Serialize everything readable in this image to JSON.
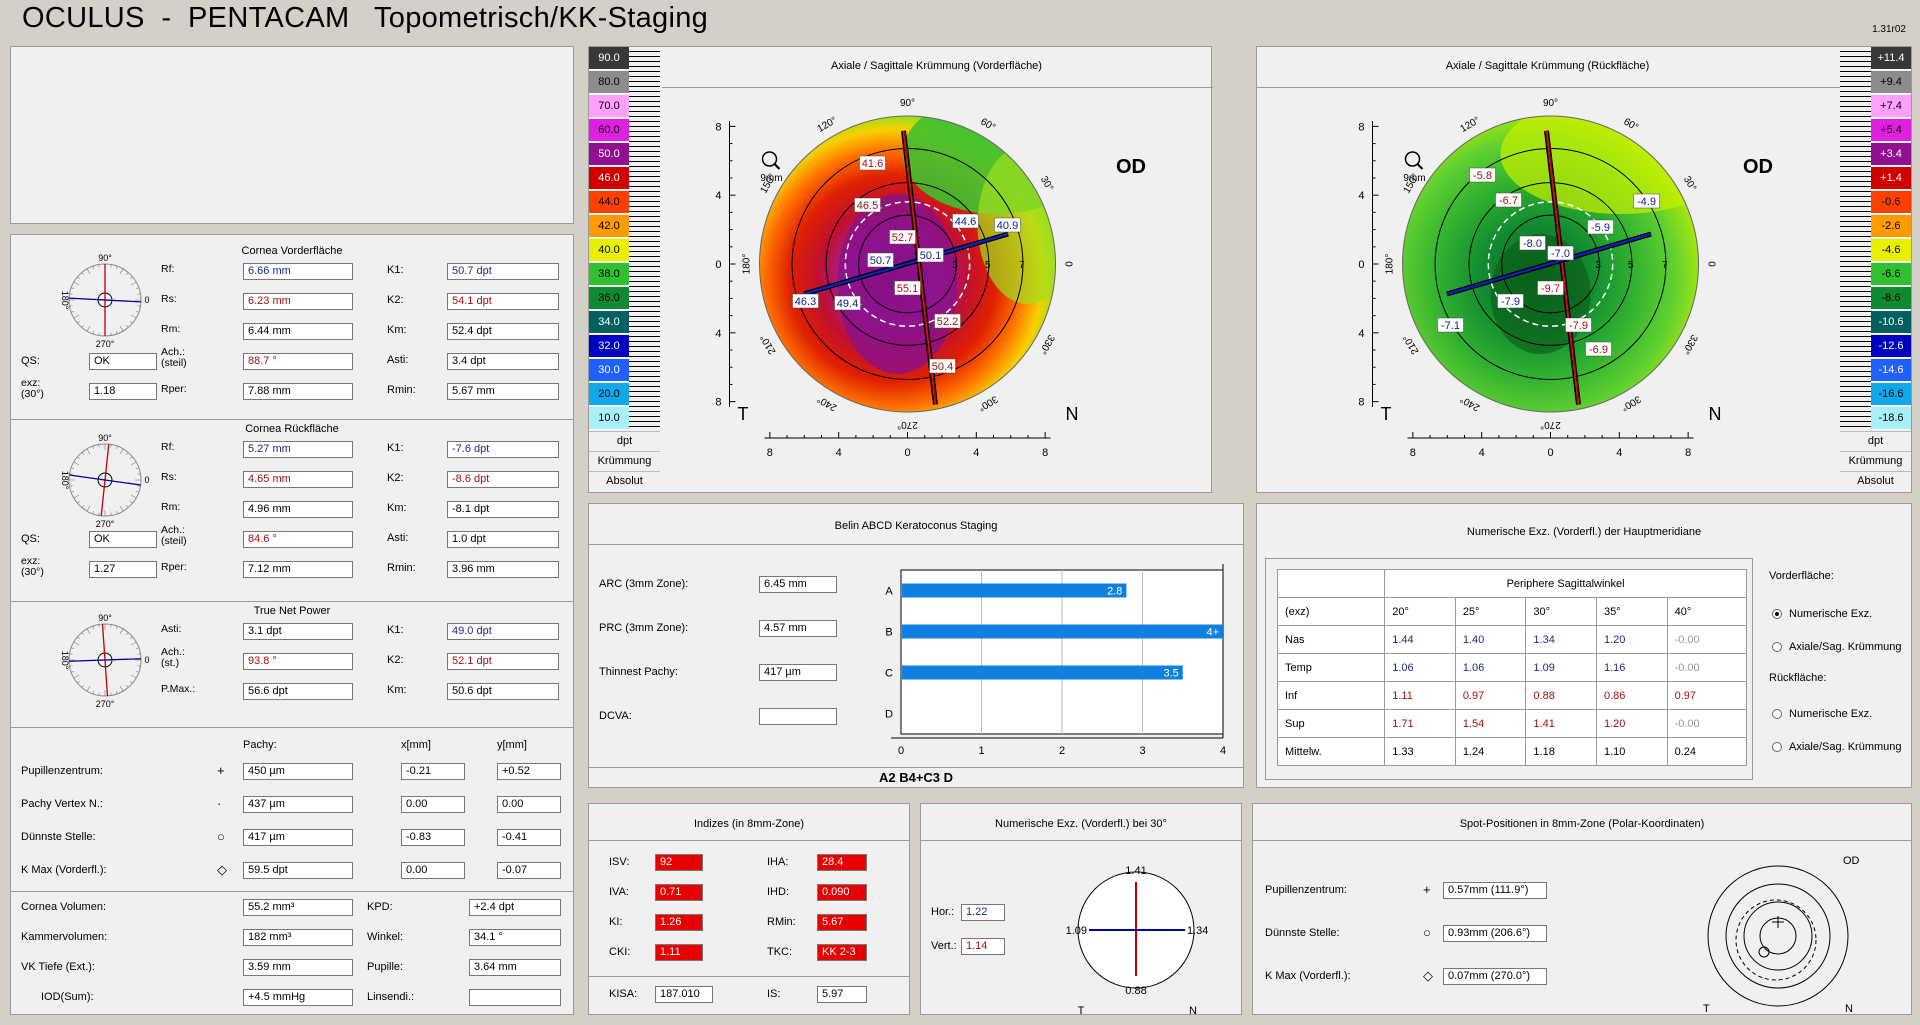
{
  "header": {
    "title": "OCULUS  -  PENTACAM   Topometrisch/KK-Staging",
    "version": "1.31r02"
  },
  "front": {
    "title": "Cornea Vorderfläche",
    "rows": [
      {
        "l1": "Rf:",
        "v1": "6.66 mm",
        "c1": "blue",
        "l2": "K1:",
        "v2": "50.7 dpt",
        "c2": "blue"
      },
      {
        "l1": "Rs:",
        "v1": "6.23 mm",
        "c1": "red",
        "l2": "K2:",
        "v2": "54.1 dpt",
        "c2": "red"
      },
      {
        "l1": "Rm:",
        "v1": "6.44 mm",
        "c1": "",
        "l2": "Km:",
        "v2": "52.4 dpt",
        "c2": ""
      },
      {
        "l1": "Ach.:\n(steil)",
        "v1": "88.7 °",
        "c1": "red",
        "l2": "Asti:",
        "v2": "3.4 dpt",
        "c2": ""
      },
      {
        "l1": "Rper:",
        "v1": "7.88 mm",
        "c1": "",
        "l2": "Rmin:",
        "v2": "5.67 mm",
        "c2": ""
      }
    ],
    "qs_label": "QS:",
    "qs": "OK",
    "exz_label": "exz:\n(30°)",
    "exz": "1.18"
  },
  "back": {
    "title": "Cornea Rückfläche",
    "rows": [
      {
        "l1": "Rf:",
        "v1": "5.27 mm",
        "c1": "blue",
        "l2": "K1:",
        "v2": "-7.6 dpt",
        "c2": "blue"
      },
      {
        "l1": "Rs:",
        "v1": "4.65 mm",
        "c1": "red",
        "l2": "K2:",
        "v2": "-8.6 dpt",
        "c2": "red"
      },
      {
        "l1": "Rm:",
        "v1": "4.96 mm",
        "c1": "",
        "l2": "Km:",
        "v2": "-8.1 dpt",
        "c2": ""
      },
      {
        "l1": "Ach.:\n(steil)",
        "v1": "84.6 °",
        "c1": "red",
        "l2": "Asti:",
        "v2": "1.0 dpt",
        "c2": ""
      },
      {
        "l1": "Rper:",
        "v1": "7.12 mm",
        "c1": "",
        "l2": "Rmin:",
        "v2": "3.96 mm",
        "c2": ""
      }
    ],
    "qs_label": "QS:",
    "qs": "OK",
    "exz_label": "exz:\n(30°)",
    "exz": "1.27"
  },
  "tnp": {
    "title": "True Net Power",
    "rows": [
      {
        "l1": "Asti:",
        "v1": "3.1 dpt",
        "c1": "",
        "l2": "K1:",
        "v2": "49.0 dpt",
        "c2": "blue"
      },
      {
        "l1": "Ach.:\n(st.)",
        "v1": "93.8 °",
        "c1": "red",
        "l2": "K2:",
        "v2": "52.1 dpt",
        "c2": "red"
      },
      {
        "l1": "P.Max.:",
        "v1": "56.6 dpt",
        "c1": "",
        "l2": "Km:",
        "v2": "50.6 dpt",
        "c2": ""
      }
    ]
  },
  "axisLabels": {
    "top": "90°",
    "bottom": "270°",
    "left": "180°",
    "right": "0"
  },
  "pachy": {
    "h_pachy": "Pachy:",
    "h_x": "x[mm]",
    "h_y": "y[mm]",
    "rows": [
      {
        "label": "Pupillenzentrum:",
        "sym": "+",
        "p": "450 µm",
        "x": "-0.21",
        "y": "+0.52"
      },
      {
        "label": "Pachy Vertex N.:",
        "sym": "·",
        "p": "437 µm",
        "x": "0.00",
        "y": "0.00"
      },
      {
        "label": "Dünnste Stelle:",
        "sym": "○",
        "p": "417 µm",
        "x": "-0.83",
        "y": "-0.41"
      },
      {
        "label": "K Max (Vorderfl.):",
        "sym": "◇",
        "p": "59.5 dpt",
        "x": "0.00",
        "y": "-0.07"
      }
    ]
  },
  "volume": {
    "rows": [
      {
        "l1": "Cornea Volumen:",
        "v1": "55.2 mm³",
        "l2": "KPD:",
        "v2": "+2.4 dpt"
      },
      {
        "l1": "Kammervolumen:",
        "v1": "182 mm³",
        "l2": "Winkel:",
        "v2": "34.1 °"
      },
      {
        "l1": "VK Tiefe (Ext.):",
        "v1": "3.59 mm",
        "l2": "Pupille:",
        "v2": "3.64 mm"
      },
      {
        "l1": "IOD(Sum):",
        "v1": "+4.5 mmHg",
        "l2": "Linsendi.:",
        "v2": ""
      }
    ]
  },
  "map1": {
    "title": "Axiale / Sagittale Krümmung (Vorderfläche)",
    "eye": "OD",
    "T": "T",
    "N": "N",
    "zoom": "9mm",
    "scale": [
      {
        "v": "90.0",
        "c": "#383838",
        "t": "#fff"
      },
      {
        "v": "80.0",
        "c": "#8c8c8c",
        "t": "#000"
      },
      {
        "v": "70.0",
        "c": "#ffa0ff",
        "t": "#000"
      },
      {
        "v": "60.0",
        "c": "#e020e0",
        "t": "#000"
      },
      {
        "v": "50.0",
        "c": "#901090",
        "t": "#fff"
      },
      {
        "v": "46.0",
        "c": "#d00000",
        "t": "#fff"
      },
      {
        "v": "44.0",
        "c": "#ff4000",
        "t": "#000"
      },
      {
        "v": "42.0",
        "c": "#ff9a00",
        "t": "#000"
      },
      {
        "v": "40.0",
        "c": "#e8f000",
        "t": "#000"
      },
      {
        "v": "38.0",
        "c": "#30c030",
        "t": "#000"
      },
      {
        "v": "36.0",
        "c": "#108a30",
        "t": "#000"
      },
      {
        "v": "34.0",
        "c": "#006060",
        "t": "#fff"
      },
      {
        "v": "32.0",
        "c": "#0000c0",
        "t": "#fff"
      },
      {
        "v": "30.0",
        "c": "#2060ff",
        "t": "#fff"
      },
      {
        "v": "20.0",
        "c": "#10a8e8",
        "t": "#000"
      },
      {
        "v": "10.0",
        "c": "#a8f0f8",
        "t": "#000"
      }
    ],
    "unit": "dpt",
    "mode": "Krümmung",
    "abs": "Absolut",
    "labels": [
      {
        "t": "41.6",
        "k": "r"
      },
      {
        "t": "46.5",
        "k": "r"
      },
      {
        "t": "52.7",
        "k": "r"
      },
      {
        "t": "55.1",
        "k": "r"
      },
      {
        "t": "52.2",
        "k": "r"
      },
      {
        "t": "50.4",
        "k": "r"
      },
      {
        "t": "44.6",
        "k": "b"
      },
      {
        "t": "40.9",
        "k": "b"
      },
      {
        "t": "50.7",
        "k": "b"
      },
      {
        "t": "50.1",
        "k": "b"
      },
      {
        "t": "49.4",
        "k": "b"
      },
      {
        "t": "46.3",
        "k": "b"
      }
    ]
  },
  "map2": {
    "title": "Axiale / Sagittale Krümmung (Rückfläche)",
    "eye": "OD",
    "T": "T",
    "N": "N",
    "zoom": "9mm",
    "scale": [
      {
        "v": "+11.4",
        "c": "#383838",
        "t": "#fff"
      },
      {
        "v": "+9.4",
        "c": "#8c8c8c",
        "t": "#000"
      },
      {
        "v": "+7.4",
        "c": "#ffa0ff",
        "t": "#000"
      },
      {
        "v": "+5.4",
        "c": "#e020e0",
        "t": "#000"
      },
      {
        "v": "+3.4",
        "c": "#901090",
        "t": "#fff"
      },
      {
        "v": "+1.4",
        "c": "#d00000",
        "t": "#fff"
      },
      {
        "v": "-0.6",
        "c": "#ff4000",
        "t": "#000"
      },
      {
        "v": "-2.6",
        "c": "#ff9a00",
        "t": "#000"
      },
      {
        "v": "-4.6",
        "c": "#e8f000",
        "t": "#000"
      },
      {
        "v": "-6.6",
        "c": "#30c030",
        "t": "#000"
      },
      {
        "v": "-8.6",
        "c": "#108a30",
        "t": "#000"
      },
      {
        "v": "-10.6",
        "c": "#006060",
        "t": "#fff"
      },
      {
        "v": "-12.6",
        "c": "#0000c0",
        "t": "#fff"
      },
      {
        "v": "-14.6",
        "c": "#2060ff",
        "t": "#fff"
      },
      {
        "v": "-16.6",
        "c": "#10a8e8",
        "t": "#000"
      },
      {
        "v": "-18.6",
        "c": "#a8f0f8",
        "t": "#000"
      }
    ],
    "unit": "dpt",
    "mode": "Krümmung",
    "abs": "Absolut",
    "labels": [
      {
        "t": "-5.8",
        "k": "r"
      },
      {
        "t": "-6.7",
        "k": "r"
      },
      {
        "t": "-9.7",
        "k": "r"
      },
      {
        "t": "-7.9",
        "k": "r"
      },
      {
        "t": "-6.9",
        "k": "r"
      },
      {
        "t": "-8.0",
        "k": "b"
      },
      {
        "t": "-7.0",
        "k": "b"
      },
      {
        "t": "-5.9",
        "k": "b"
      },
      {
        "t": "-4.9",
        "k": "b"
      },
      {
        "t": "-7.9",
        "k": "b"
      },
      {
        "t": "-7.1",
        "k": "b"
      }
    ]
  },
  "mapAxis": {
    "deg": [
      "90°",
      "60°",
      "30°",
      "0",
      "330°",
      "300°",
      "270°",
      "240°",
      "210°",
      "180°",
      "150°",
      "120°"
    ],
    "ticks": [
      "8",
      "4",
      "0",
      "4",
      "8"
    ],
    "rings": [
      "3",
      "5",
      "7"
    ]
  },
  "belin": {
    "title": "Belin ABCD Keratoconus Staging",
    "rows": [
      {
        "l": "ARC (3mm Zone):",
        "v": "6.45 mm"
      },
      {
        "l": "PRC (3mm Zone):",
        "v": "4.57 mm"
      },
      {
        "l": "Thinnest Pachy:",
        "v": "417 µm"
      },
      {
        "l": "DCVA:",
        "v": ""
      }
    ],
    "result": "A2 B4+C3 D"
  },
  "chart_data": {
    "type": "bar",
    "categories": [
      "A",
      "B",
      "C",
      "D"
    ],
    "values": [
      2.8,
      4,
      3.5,
      null
    ],
    "value_labels": [
      "2.8",
      "4+",
      "3.5",
      ""
    ],
    "xlim": [
      0,
      4
    ],
    "xticks": [
      "0",
      "1",
      "2",
      "3",
      "4"
    ],
    "color": "#1080e0"
  },
  "numexz": {
    "title": "Numerische Exz. (Vorderfl.) der Hauptmeridiane",
    "tbl_title": "Periphere Sagittalwinkel",
    "head": [
      "(exz)",
      "20°",
      "25°",
      "30°",
      "35°",
      "40°"
    ],
    "rows": [
      {
        "n": "Nas",
        "c": "blue",
        "v": [
          "1.44",
          "1.40",
          "1.34",
          "1.20",
          "-0.00"
        ]
      },
      {
        "n": "Temp",
        "c": "blue",
        "v": [
          "1.06",
          "1.06",
          "1.09",
          "1.16",
          "-0.00"
        ]
      },
      {
        "n": "Inf",
        "c": "red",
        "v": [
          "1.11",
          "0.97",
          "0.88",
          "0.86",
          "0.97"
        ]
      },
      {
        "n": "Sup",
        "c": "red",
        "v": [
          "1.71",
          "1.54",
          "1.41",
          "1.20",
          "-0.00"
        ]
      },
      {
        "n": "Mittelw.",
        "c": "",
        "v": [
          "1.33",
          "1.24",
          "1.18",
          "1.10",
          "0.24"
        ]
      }
    ],
    "opt": {
      "front": "Vorderfläche:",
      "o1": "Numerische Exz.",
      "o2": "Axiale/Sag. Krümmung",
      "back": "Rückfläche:",
      "o3": "Numerische Exz.",
      "o4": "Axiale/Sag. Krümmung"
    }
  },
  "indizes": {
    "title": "Indizes (in 8mm-Zone)",
    "rows": [
      {
        "l1": "ISV:",
        "v1": "92",
        "l2": "IHA:",
        "v2": "28.4"
      },
      {
        "l1": "IVA:",
        "v1": "0.71",
        "l2": "IHD:",
        "v2": "0.090"
      },
      {
        "l1": "KI:",
        "v1": "1.26",
        "l2": "RMin:",
        "v2": "5.67"
      },
      {
        "l1": "CKI:",
        "v1": "1.11",
        "l2": "TKC:",
        "v2": "KK 2-3"
      }
    ],
    "kisa_l": "KISA:",
    "kisa": "187.010",
    "is_l": "IS:",
    "is": "5.97"
  },
  "numexz30": {
    "title": "Numerische Exz. (Vorderfl.) bei 30°",
    "hor_l": "Hor.:",
    "hor": "1.22",
    "vert_l": "Vert.:",
    "vert": "1.14",
    "top": "1.41",
    "bottom": "0.88",
    "left": "1.09",
    "right": "1.34",
    "T": "T",
    "N": "N"
  },
  "spot": {
    "title": "Spot-Positionen in 8mm-Zone (Polar-Koordinaten)",
    "rows": [
      {
        "l": "Pupillenzentrum:",
        "s": "+",
        "v": "0.57mm (111.9°)"
      },
      {
        "l": "Dünnste Stelle:",
        "s": "○",
        "v": "0.93mm (206.6°)"
      },
      {
        "l": "K Max (Vorderfl.):",
        "s": "◇",
        "v": "0.07mm (270.0°)"
      }
    ],
    "eye": "OD",
    "T": "T",
    "N": "N"
  }
}
